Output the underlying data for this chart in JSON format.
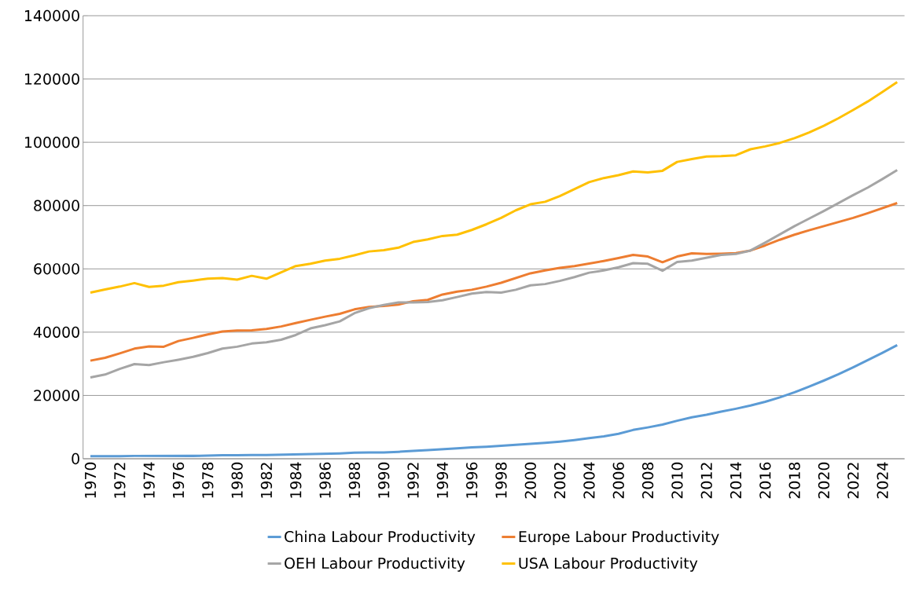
{
  "chart_data": {
    "type": "line",
    "categories": [
      "1970",
      null,
      "1972",
      null,
      "1974",
      null,
      "1976",
      null,
      "1978",
      null,
      "1980",
      null,
      "1982",
      null,
      "1984",
      null,
      "1986",
      null,
      "1988",
      null,
      "1990",
      null,
      "1992",
      null,
      "1994",
      null,
      "1996",
      null,
      "1998",
      null,
      "2000",
      null,
      "2002",
      null,
      "2004",
      null,
      "2006",
      null,
      "2008",
      null,
      "2010",
      null,
      "2012",
      null,
      "2014",
      null,
      "2016",
      null,
      "2018",
      null,
      "2020",
      null,
      "2022",
      null,
      "2024",
      null
    ],
    "series": [
      {
        "name": "China Labour Productivity",
        "color": "#5b9bd5",
        "values": [
          800,
          800,
          800,
          900,
          900,
          900,
          900,
          900,
          1000,
          1100,
          1100,
          1200,
          1200,
          1300,
          1400,
          1500,
          1600,
          1700,
          1900,
          2000,
          2000,
          2200,
          2500,
          2700,
          3000,
          3300,
          3600,
          3800,
          4100,
          4400,
          4700,
          5000,
          5400,
          5900,
          6500,
          7100,
          7900,
          9100,
          9900,
          10800,
          12000,
          13100,
          13900,
          14900,
          15800,
          16800,
          18000,
          19400,
          21000,
          22800,
          24700,
          26700,
          28900,
          31200,
          33500,
          35900
        ]
      },
      {
        "name": "Europe Labour Productivity",
        "color": "#ed7d31",
        "values": [
          31000,
          31900,
          33300,
          34800,
          35500,
          35400,
          37200,
          38200,
          39300,
          40200,
          40500,
          40600,
          41000,
          41800,
          42900,
          43900,
          44900,
          45800,
          47200,
          48000,
          48300,
          48700,
          49800,
          50200,
          51900,
          52800,
          53400,
          54400,
          55600,
          57100,
          58600,
          59500,
          60300,
          60900,
          61700,
          62500,
          63400,
          64400,
          63900,
          62100,
          63900,
          64900,
          64700,
          64800,
          65000,
          65800,
          67400,
          69200,
          70800,
          72200,
          73500,
          74800,
          76100,
          77600,
          79200,
          80800
        ]
      },
      {
        "name": "OEH Labour Productivity",
        "color": "#a5a5a5",
        "values": [
          25700,
          26600,
          28400,
          29900,
          29600,
          30500,
          31300,
          32200,
          33400,
          34800,
          35400,
          36400,
          36800,
          37600,
          39100,
          41200,
          42200,
          43400,
          46000,
          47600,
          48600,
          49400,
          49400,
          49500,
          50100,
          51100,
          52200,
          52700,
          52500,
          53400,
          54800,
          55200,
          56200,
          57400,
          58800,
          59500,
          60500,
          61800,
          61600,
          59400,
          62200,
          62600,
          63500,
          64400,
          64700,
          65800,
          68300,
          70900,
          73500,
          75900,
          78300,
          80800,
          83300,
          85700,
          88400,
          91200
        ]
      },
      {
        "name": "USA Labour Productivity",
        "color": "#ffc000",
        "values": [
          52500,
          53500,
          54400,
          55500,
          54300,
          54700,
          55800,
          56300,
          56900,
          57100,
          56600,
          57800,
          56900,
          58900,
          60900,
          61600,
          62600,
          63200,
          64300,
          65500,
          65900,
          66700,
          68500,
          69300,
          70400,
          70800,
          72300,
          74100,
          76100,
          78500,
          80400,
          81200,
          83000,
          85200,
          87400,
          88700,
          89600,
          90800,
          90500,
          91000,
          93800,
          94700,
          95500,
          95600,
          95900,
          97800,
          98700,
          99800,
          101300,
          103100,
          105200,
          107600,
          110200,
          112900,
          115900,
          119000
        ]
      }
    ],
    "ylim": [
      0,
      140000
    ],
    "yticks": [
      0,
      20000,
      40000,
      60000,
      80000,
      100000,
      120000,
      140000
    ],
    "grid": "y",
    "legend": "bottom"
  }
}
